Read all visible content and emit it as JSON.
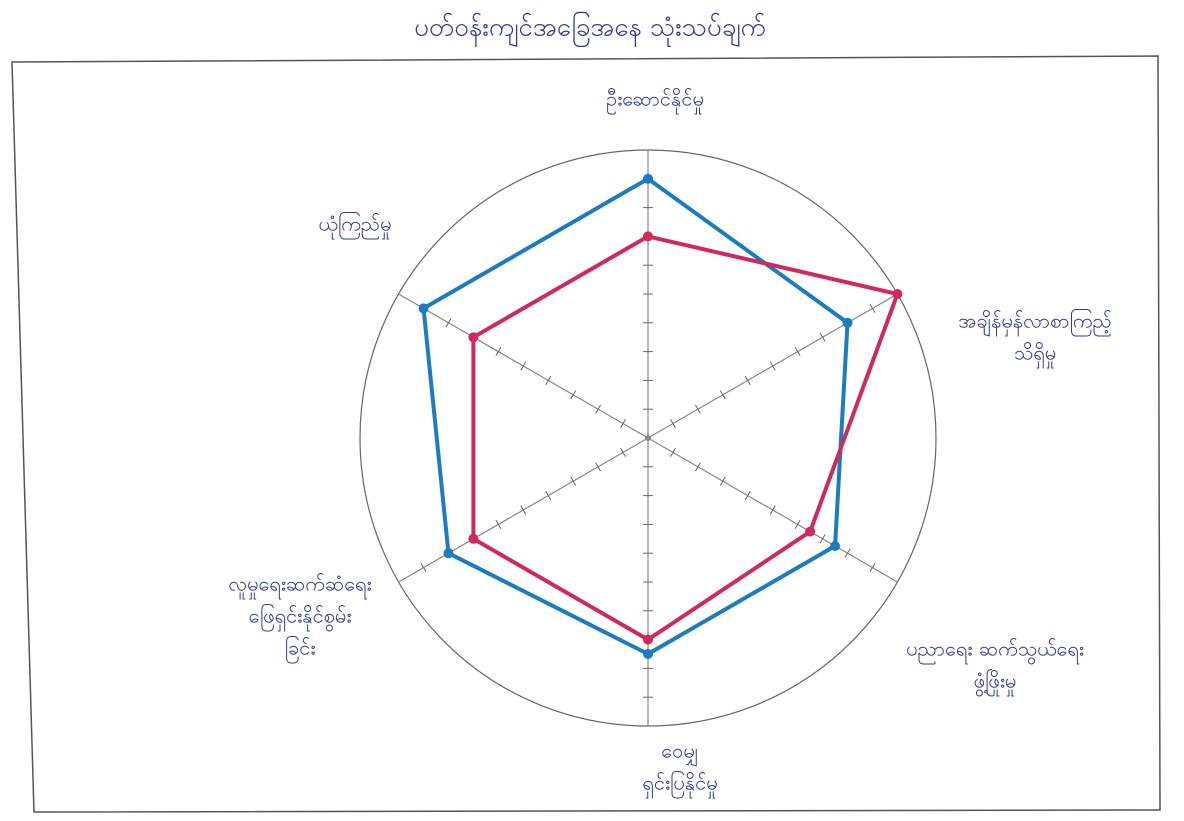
{
  "chart_data": {
    "type": "radar",
    "title": "ပတ်ဝန်းကျင်အခြေအနေ သုံးသပ်ချက်",
    "categories": [
      [
        "ဦးဆောင်နိုင်မှု"
      ],
      [
        "အချိန်မှန်လာစာကြည့်",
        "သိရှိမှု"
      ],
      [
        "ပညာရေး ဆက်သွယ်ရေး",
        "ဖွံ့ဖြိုးမှု"
      ],
      [
        "ဝေမျှ",
        "ရှင်းပြနိုင်မှု"
      ],
      [
        "လူမှုရေးဆက်ဆံရေး",
        "ဖြေရှင်းနိုင်စွမ်း",
        "ခြင်း"
      ],
      [
        "ယုံကြည်မှု"
      ]
    ],
    "series": [
      {
        "color": "#1b7cc2",
        "values": [
          9,
          8,
          7.5,
          7.5,
          8,
          9
        ]
      },
      {
        "color": "#d2295c",
        "values": [
          7,
          10,
          6.5,
          7,
          7,
          7
        ]
      }
    ],
    "rlim": [
      0,
      10
    ],
    "rticks": [
      1,
      2,
      3,
      4,
      5,
      6,
      7,
      8,
      9
    ]
  }
}
